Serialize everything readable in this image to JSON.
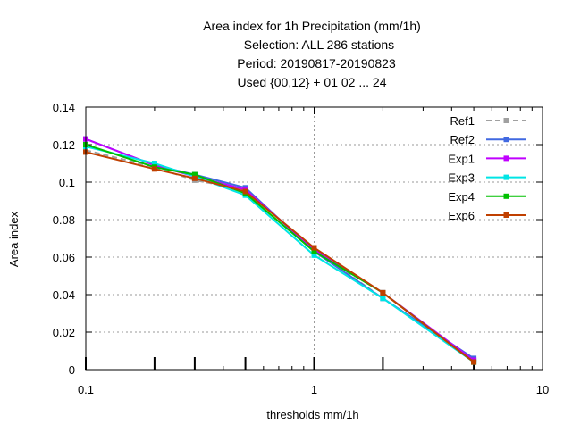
{
  "title_lines": [
    "Area index  for 1h Precipitation (mm/1h)",
    "Selection: ALL    286 stations",
    "Period: 20190817-20190823",
    "Used {00,12} + 01 02 ... 24"
  ],
  "chart_data": {
    "type": "line",
    "xlabel": "thresholds mm/1h",
    "ylabel": "Area index",
    "xscale": "log",
    "xlim": [
      0.1,
      10
    ],
    "ylim": [
      0,
      0.14
    ],
    "x_ticks": [
      0.1,
      1,
      10
    ],
    "x_tick_labels": [
      "0.1",
      "1",
      "10"
    ],
    "y_ticks": [
      0,
      0.02,
      0.04,
      0.06,
      0.08,
      0.1,
      0.12,
      0.14
    ],
    "y_tick_labels": [
      "0",
      "0.02",
      "0.04",
      "0.06",
      "0.08",
      "0.1",
      "0.12",
      "0.14"
    ],
    "threshold_marks": [
      0.1,
      0.2,
      0.3,
      0.5,
      1,
      2,
      5
    ],
    "grid": true,
    "legend_position": "top-right",
    "x": [
      0.1,
      0.2,
      0.3,
      0.5,
      1,
      2,
      5
    ],
    "series": [
      {
        "name": "Ref1",
        "color": "#a0a0a0",
        "dashed": true,
        "values": [
          0.117,
          0.108,
          0.101,
          0.096,
          0.064,
          0.038,
          0.005
        ]
      },
      {
        "name": "Ref2",
        "color": "#4169e1",
        "dashed": false,
        "values": [
          0.123,
          0.109,
          0.104,
          0.097,
          0.063,
          0.038,
          0.006
        ]
      },
      {
        "name": "Exp1",
        "color": "#c000ff",
        "dashed": false,
        "values": [
          0.123,
          0.109,
          0.103,
          0.096,
          0.064,
          0.041,
          0.005
        ]
      },
      {
        "name": "Exp3",
        "color": "#00e5e5",
        "dashed": false,
        "values": [
          0.119,
          0.11,
          0.103,
          0.093,
          0.061,
          0.038,
          0.004
        ]
      },
      {
        "name": "Exp4",
        "color": "#00c000",
        "dashed": false,
        "values": [
          0.12,
          0.108,
          0.104,
          0.094,
          0.063,
          0.041,
          0.004
        ]
      },
      {
        "name": "Exp6",
        "color": "#c04000",
        "dashed": false,
        "values": [
          0.116,
          0.107,
          0.102,
          0.095,
          0.065,
          0.041,
          0.004
        ]
      }
    ]
  }
}
